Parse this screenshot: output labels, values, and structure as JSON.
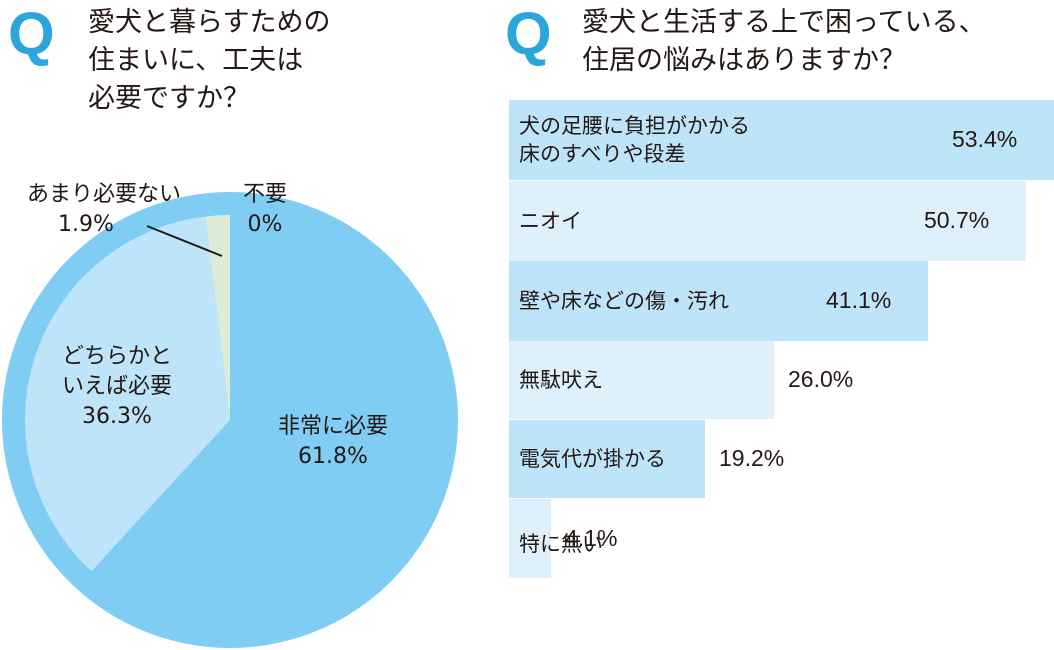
{
  "question1": {
    "q": "Q",
    "title_lines": [
      "愛犬と暮らすための",
      "住まいに、工夫は",
      "必要ですか？"
    ]
  },
  "question2": {
    "q": "Q",
    "title_lines": [
      "愛犬と生活する上で困っている、",
      "住居の悩みはありますか？"
    ]
  },
  "colors": {
    "q_mark": "#2ba5dc",
    "pie_ring": "#7fcdf3",
    "pie_main": "#7fcdf3",
    "pie_second": "#bee4f9",
    "pie_third": "#dcecd8",
    "bar_dark": "#bee4f9",
    "bar_light": "#ddf0fb"
  },
  "chart_data": [
    {
      "type": "pie",
      "slices": [
        {
          "label_lines": [
            "非常に必要"
          ],
          "value_text": "61.8%",
          "value": 61.8
        },
        {
          "label_lines": [
            "どちらかと",
            "いえば必要"
          ],
          "value_text": "36.3%",
          "value": 36.3
        },
        {
          "label_lines": [
            "あまり必要ない"
          ],
          "value_text": "1.9%",
          "value": 1.9
        },
        {
          "label_lines": [
            "不要"
          ],
          "value_text": "0%",
          "value": 0
        }
      ]
    },
    {
      "type": "bar",
      "orientation": "horizontal",
      "xlim": [
        0,
        53.4
      ],
      "bars": [
        {
          "label_lines": [
            "犬の足腰に負担がかかる",
            "床のすべりや段差"
          ],
          "value": 53.4,
          "value_text": "53.4%"
        },
        {
          "label_lines": [
            "ニオイ"
          ],
          "value": 50.7,
          "value_text": "50.7%"
        },
        {
          "label_lines": [
            "壁や床などの傷・汚れ"
          ],
          "value": 41.1,
          "value_text": "41.1%"
        },
        {
          "label_lines": [
            "無駄吠え"
          ],
          "value": 26.0,
          "value_text": "26.0%"
        },
        {
          "label_lines": [
            "電気代が掛かる"
          ],
          "value": 19.2,
          "value_text": "19.2%"
        },
        {
          "label_lines": [
            "特に無い"
          ],
          "value": 4.1,
          "value_text": "4.1%"
        }
      ]
    }
  ]
}
